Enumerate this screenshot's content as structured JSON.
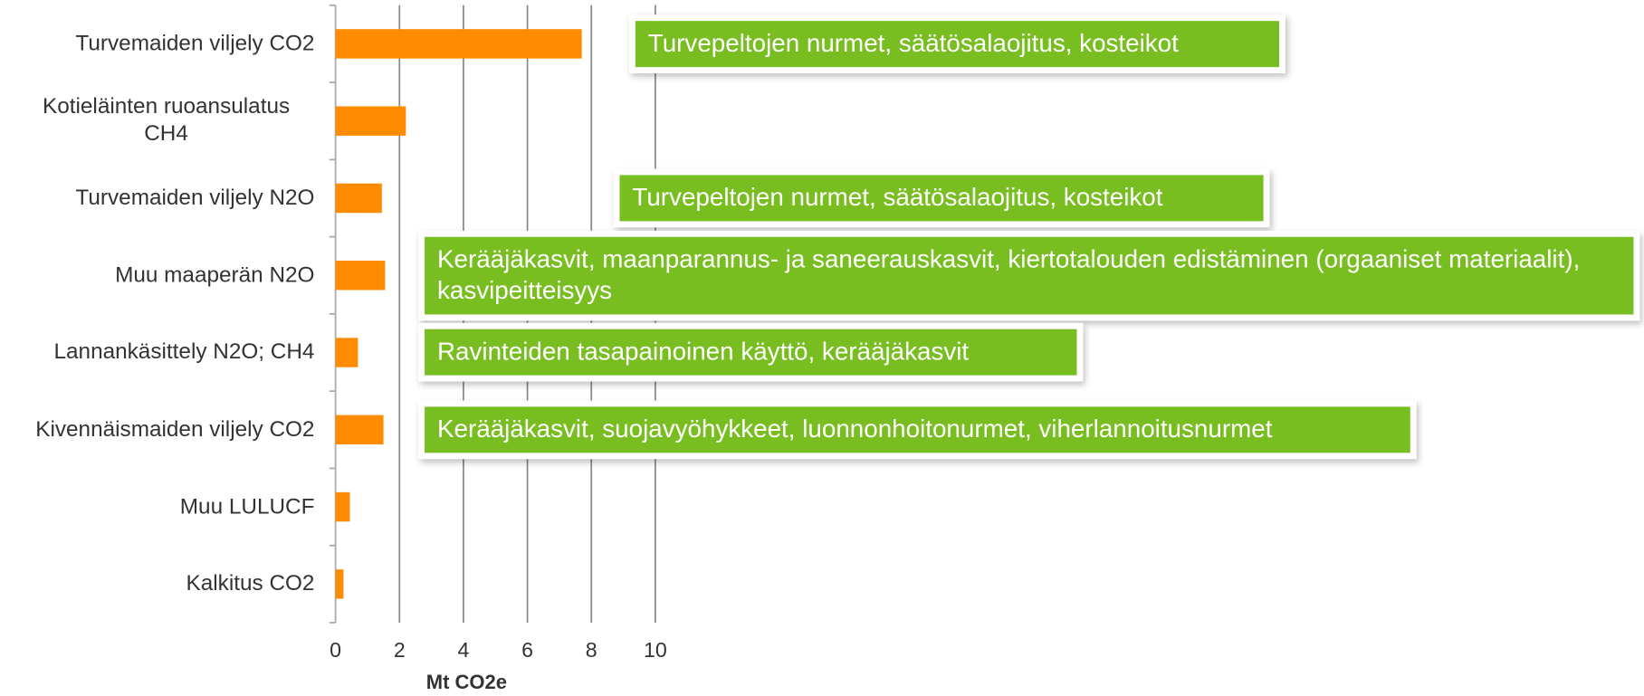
{
  "chart_data": {
    "type": "bar",
    "orientation": "horizontal",
    "categories": [
      "Turvemaiden viljely CO2",
      "Kotieläinten ruoansulatus CH4",
      "Turvemaiden viljely N2O",
      "Muu maaperän N2O",
      "Lannankäsittely N2O; CH4",
      "Kivennäismaiden viljely CO2",
      "Muu LULUCF",
      "Kalkitus CO2"
    ],
    "values": [
      7.7,
      2.2,
      1.45,
      1.55,
      0.7,
      1.5,
      0.45,
      0.25
    ],
    "color": "#ff8c00",
    "xlabel": "Mt CO2e",
    "xlim": [
      0,
      10
    ],
    "xticks": [
      0,
      2,
      4,
      6,
      8,
      10
    ],
    "grid": true,
    "annotations": [
      {
        "text": "Turvepeltojen nurmet, säätösalaojitus, kosteikot",
        "category": 0
      },
      {
        "text": "Turvepeltojen nurmet, säätösalaojitus, kosteikot",
        "category": 2
      },
      {
        "text": "Kerääjäkasvit, maanparannus- ja saneerauskasvit, kiertotalouden edistäminen (orgaaniset materiaalit), kasvipeitteisyys",
        "category": 3
      },
      {
        "text": "Ravinteiden tasapainoinen käyttö, kerääjäkasvit",
        "category": 4
      },
      {
        "text": "Kerääjäkasvit, suojavyöhykkeet, luonnonhoitonurmet, viherlannoitusnurmet",
        "category": 5
      }
    ]
  }
}
